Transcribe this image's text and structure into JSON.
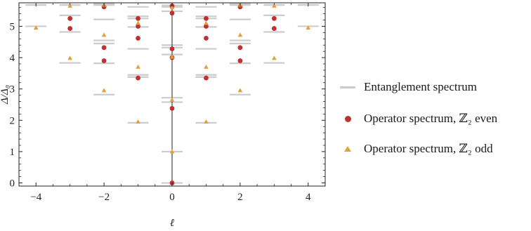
{
  "chart_data": {
    "type": "scatter",
    "xlabel": "ℓ",
    "ylabel": "Δ/Δ₀",
    "xlim": [
      -4.5,
      4.5
    ],
    "ylim": [
      -0.1,
      5.75
    ],
    "xticks": [
      "−4",
      "−2",
      "0",
      "2",
      "4"
    ],
    "xtick_values": [
      -4,
      -2,
      0,
      2,
      4
    ],
    "yticks": [
      "0",
      "1",
      "2",
      "3",
      "4",
      "5"
    ],
    "ytick_values": [
      0,
      1,
      2,
      3,
      4,
      5
    ],
    "grid": false,
    "vertical_reference_line_x": 0,
    "legend_position": "right",
    "series": [
      {
        "name": "Entanglement spectrum",
        "marker": "dash",
        "color": "#cccccc",
        "points": [
          [
            0,
            0
          ],
          [
            0,
            1
          ],
          [
            0,
            2.58
          ],
          [
            0,
            2.72
          ],
          [
            0,
            4.1
          ],
          [
            0,
            4.32
          ],
          [
            0,
            4.4
          ],
          [
            0,
            5.48
          ],
          [
            0,
            5.62
          ],
          [
            0,
            5.67
          ],
          [
            1,
            1.92
          ],
          [
            -1,
            1.92
          ],
          [
            1,
            3.38
          ],
          [
            -1,
            3.38
          ],
          [
            1,
            3.45
          ],
          [
            -1,
            3.45
          ],
          [
            1,
            4.28
          ],
          [
            -1,
            4.28
          ],
          [
            1,
            4.98
          ],
          [
            -1,
            4.98
          ],
          [
            1,
            5.25
          ],
          [
            -1,
            5.25
          ],
          [
            1,
            5.32
          ],
          [
            -1,
            5.32
          ],
          [
            1,
            5.62
          ],
          [
            -1,
            5.62
          ],
          [
            2,
            2.82
          ],
          [
            -2,
            2.82
          ],
          [
            2,
            3.82
          ],
          [
            -2,
            3.82
          ],
          [
            2,
            4.45
          ],
          [
            -2,
            4.45
          ],
          [
            2,
            4.55
          ],
          [
            -2,
            4.55
          ],
          [
            2,
            5.22
          ],
          [
            -2,
            5.22
          ],
          [
            2,
            5.68
          ],
          [
            -2,
            5.68
          ],
          [
            2,
            5.72
          ],
          [
            -2,
            5.72
          ],
          [
            3,
            3.83
          ],
          [
            -3,
            3.83
          ],
          [
            3,
            4.82
          ],
          [
            -3,
            4.82
          ],
          [
            3,
            5.35
          ],
          [
            -3,
            5.35
          ],
          [
            3,
            5.68
          ],
          [
            -3,
            5.68
          ],
          [
            4,
            5.0
          ],
          [
            -4,
            5.0
          ],
          [
            4,
            5.68
          ],
          [
            -4,
            5.68
          ]
        ]
      },
      {
        "name": "Operator spectrum, ℤ₂ even",
        "marker": "circle",
        "color": "#c03030",
        "points": [
          [
            0,
            0
          ],
          [
            0,
            2.38
          ],
          [
            0,
            4.0
          ],
          [
            0,
            4.28
          ],
          [
            0,
            5.42
          ],
          [
            0,
            5.65
          ],
          [
            1,
            3.35
          ],
          [
            -1,
            3.35
          ],
          [
            1,
            4.62
          ],
          [
            -1,
            4.62
          ],
          [
            1,
            5.0
          ],
          [
            -1,
            5.0
          ],
          [
            1,
            5.25
          ],
          [
            -1,
            5.25
          ],
          [
            2,
            3.9
          ],
          [
            -2,
            3.9
          ],
          [
            2,
            4.32
          ],
          [
            -2,
            4.32
          ],
          [
            2,
            5.62
          ],
          [
            -2,
            5.62
          ],
          [
            3,
            4.93
          ],
          [
            -3,
            4.93
          ],
          [
            3,
            5.25
          ],
          [
            -3,
            5.25
          ]
        ]
      },
      {
        "name": "Operator spectrum, ℤ₂ odd",
        "marker": "triangle",
        "color": "#e0a040",
        "points": [
          [
            0,
            1.0
          ],
          [
            0,
            2.65
          ],
          [
            0,
            4.02
          ],
          [
            0,
            5.6
          ],
          [
            1,
            1.95
          ],
          [
            -1,
            1.95
          ],
          [
            1,
            3.7
          ],
          [
            -1,
            3.7
          ],
          [
            1,
            5.1
          ],
          [
            -1,
            5.1
          ],
          [
            2,
            2.95
          ],
          [
            -2,
            2.95
          ],
          [
            2,
            4.72
          ],
          [
            -2,
            4.72
          ],
          [
            2,
            5.68
          ],
          [
            -2,
            5.68
          ],
          [
            3,
            3.98
          ],
          [
            -3,
            3.98
          ],
          [
            3,
            5.65
          ],
          [
            -3,
            5.65
          ],
          [
            4,
            4.95
          ],
          [
            -4,
            4.95
          ]
        ]
      }
    ]
  }
}
